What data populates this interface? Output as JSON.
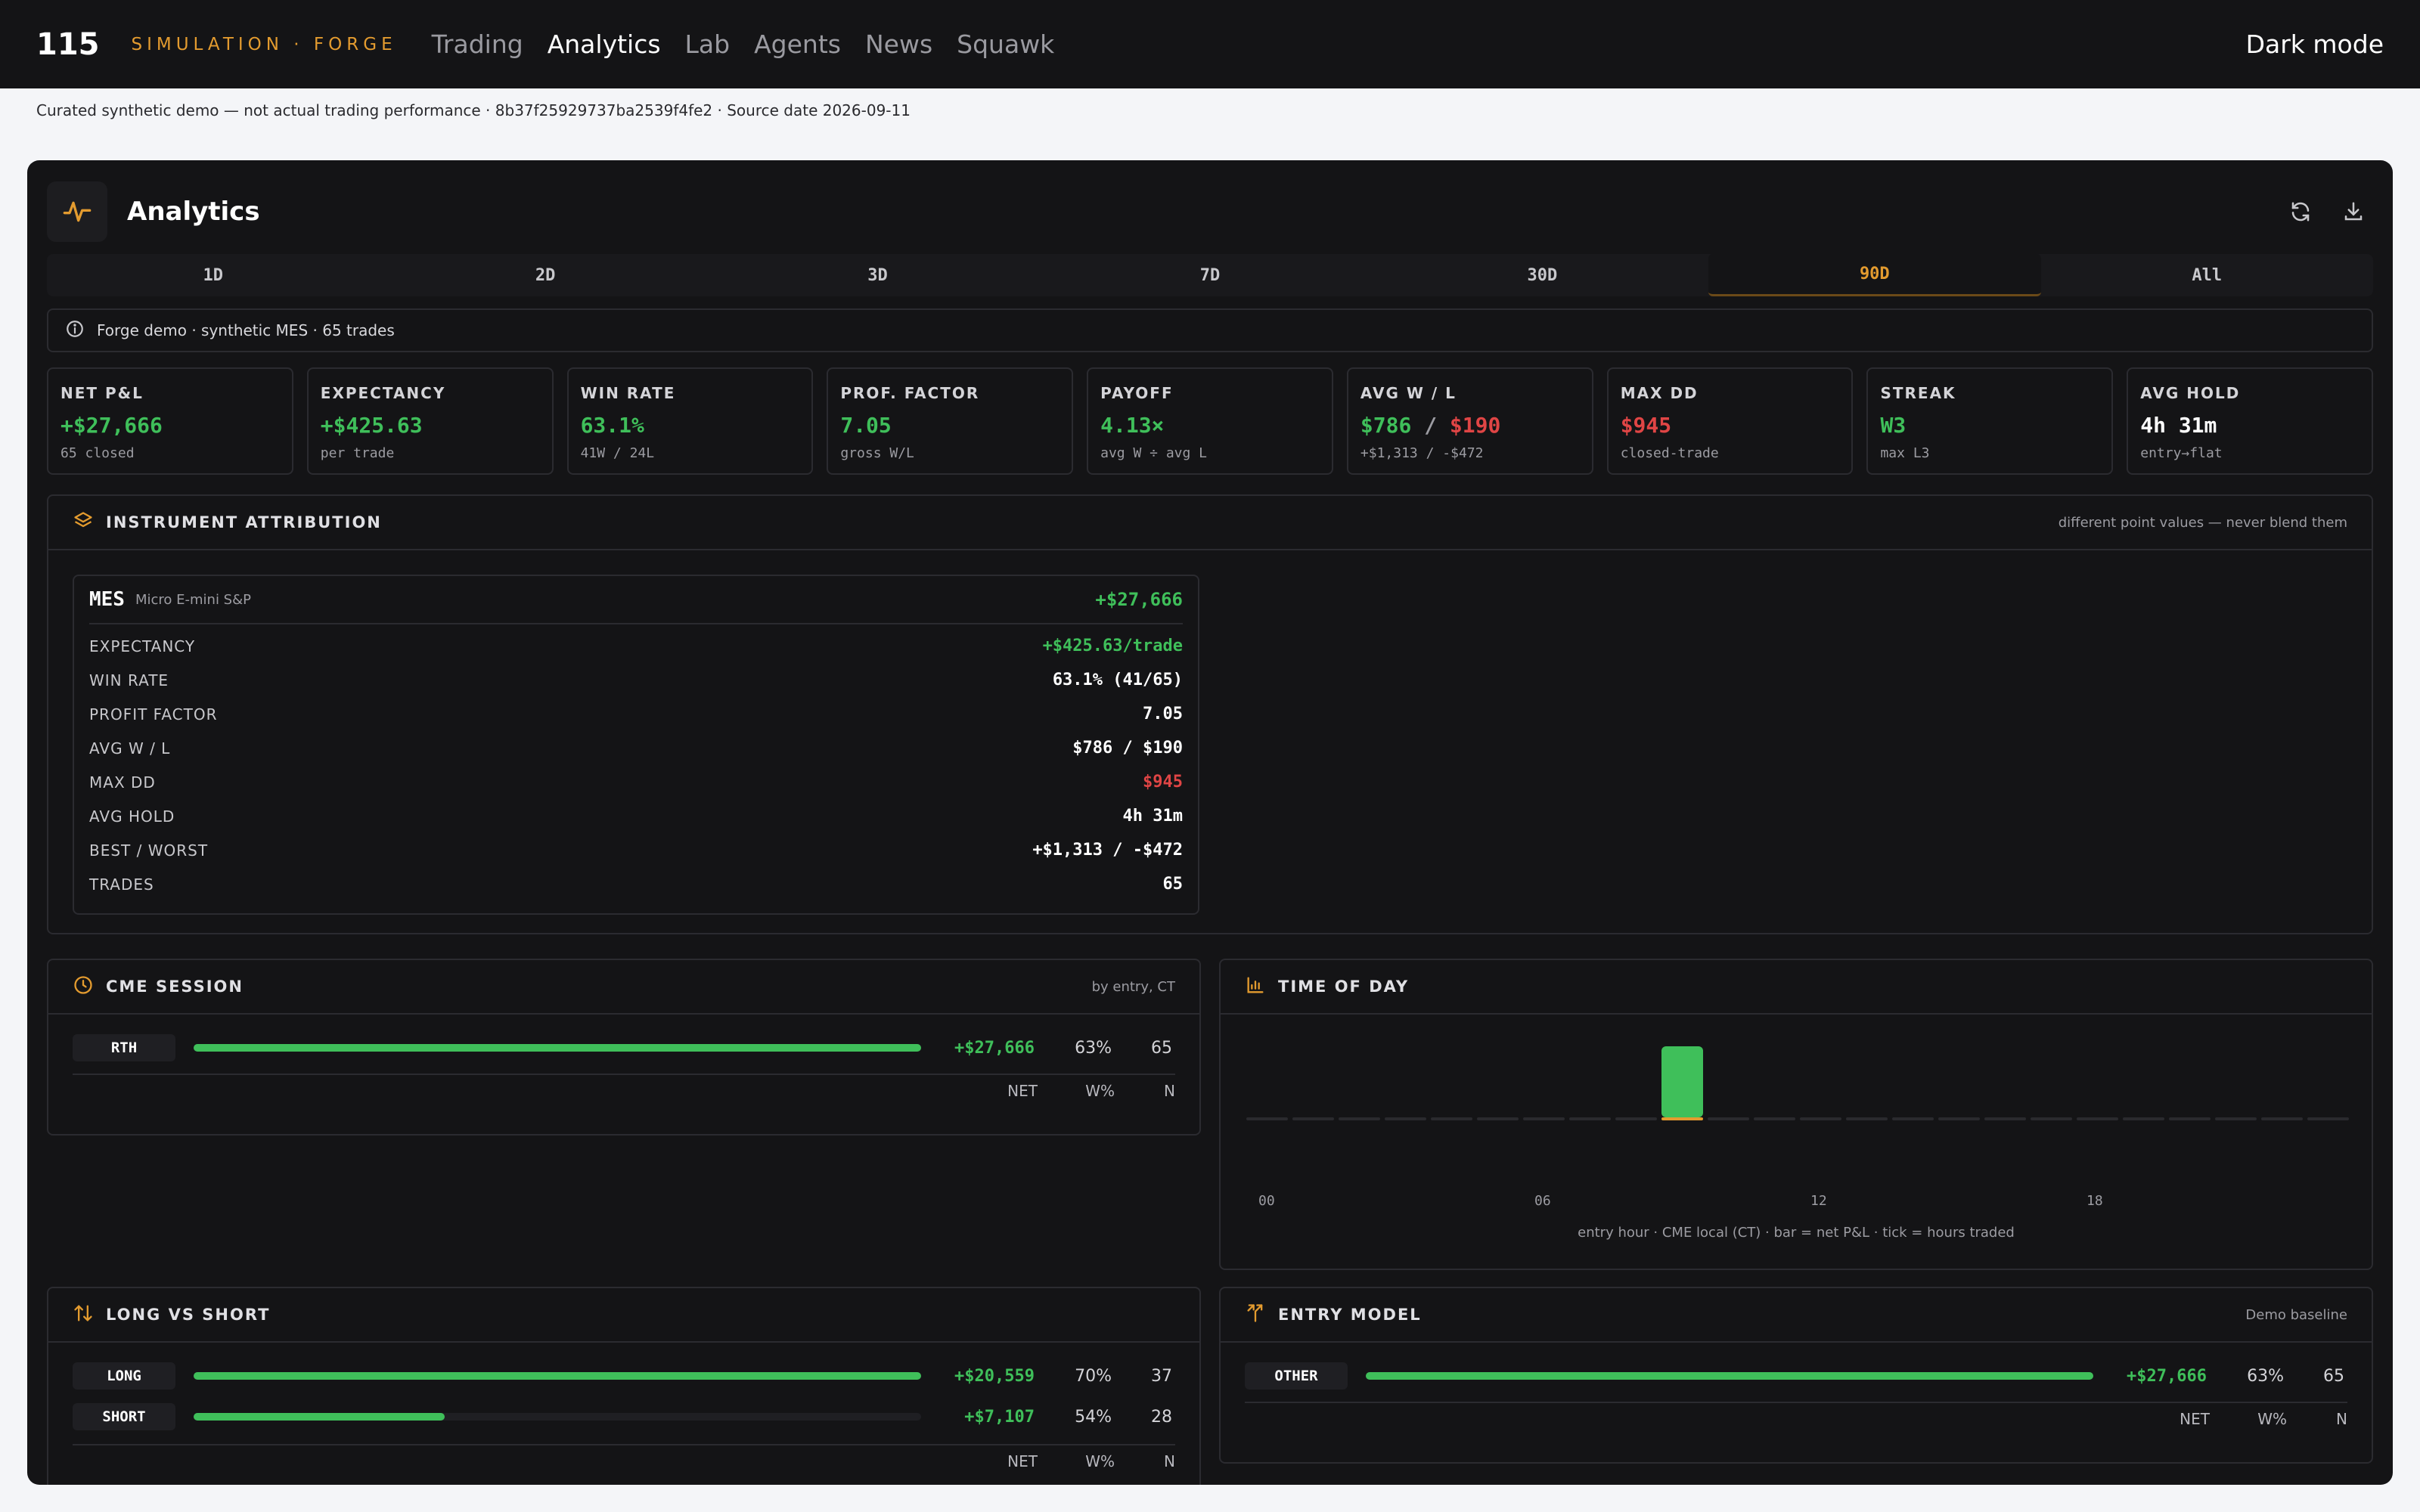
{
  "nav": {
    "logo": "115",
    "brand": "SIMULATION · FORGE",
    "links": [
      "Trading",
      "Analytics",
      "Lab",
      "Agents",
      "News",
      "Squawk"
    ],
    "active": "Analytics",
    "darkmode": "Dark mode"
  },
  "disclaimer": "Curated synthetic demo — not actual trading performance · 8b37f25929737ba2539f4fe2 · Source date 2026-09-11",
  "panel": {
    "title": "Analytics",
    "icons": {
      "header": "pulse-icon",
      "refresh": "refresh-icon",
      "download": "download-icon"
    },
    "tabs": [
      "1D",
      "2D",
      "3D",
      "7D",
      "30D",
      "90D",
      "All"
    ],
    "active_tab": "90D",
    "info": "Forge demo · synthetic MES · 65 trades"
  },
  "stats": [
    {
      "label": "NET P&L",
      "value": "+$27,666",
      "sub": "65 closed",
      "tone": "green"
    },
    {
      "label": "EXPECTANCY",
      "value": "+$425.63",
      "sub": "per trade",
      "tone": "green"
    },
    {
      "label": "WIN RATE",
      "value": "63.1%",
      "sub": "41W / 24L",
      "tone": "green"
    },
    {
      "label": "PROF. FACTOR",
      "value": "7.05",
      "sub": "gross W/L",
      "tone": "green"
    },
    {
      "label": "PAYOFF",
      "value": "4.13×",
      "sub": "avg W ÷ avg L",
      "tone": "green"
    },
    {
      "label": "AVG W / L",
      "value_w": "$786",
      "value_sep": "/",
      "value_l": "$190",
      "sub": "+$1,313 / -$472",
      "tone": "split"
    },
    {
      "label": "MAX DD",
      "value": "$945",
      "sub": "closed-trade",
      "tone": "red"
    },
    {
      "label": "STREAK",
      "value": "W3",
      "sub": "max L3",
      "tone": "green"
    },
    {
      "label": "AVG HOLD",
      "value": "4h 31m",
      "sub": "entry→flat",
      "tone": "white"
    }
  ],
  "attribution": {
    "title": "INSTRUMENT ATTRIBUTION",
    "note": "different point values — never blend them",
    "symbol": "MES",
    "desc": "Micro E-mini S&P",
    "total": "+$27,666",
    "rows": [
      {
        "k": "EXPECTANCY",
        "v": "+$425.63/trade",
        "tone": "green"
      },
      {
        "k": "WIN RATE",
        "v": "63.1% (41/65)",
        "tone": "white"
      },
      {
        "k": "PROFIT FACTOR",
        "v": "7.05",
        "tone": "white"
      },
      {
        "k": "AVG W / L",
        "v": "$786 / $190",
        "tone": "white"
      },
      {
        "k": "MAX DD",
        "v": "$945",
        "tone": "red"
      },
      {
        "k": "AVG HOLD",
        "v": "4h 31m",
        "tone": "white"
      },
      {
        "k": "BEST / WORST",
        "v": "+$1,313 / -$472",
        "tone": "white"
      },
      {
        "k": "TRADES",
        "v": "65",
        "tone": "white"
      }
    ]
  },
  "session": {
    "title": "CME SESSION",
    "note": "by entry, CT",
    "rows": [
      {
        "label": "RTH",
        "net": "+$27,666",
        "wp": "63%",
        "n": "65",
        "fill": 1.0
      }
    ],
    "foot": [
      "NET",
      "W%",
      "N"
    ]
  },
  "timeofday": {
    "title": "TIME OF DAY",
    "ticks": [
      "00",
      "06",
      "12",
      "18"
    ],
    "caption": "entry hour · CME local (CT) · bar = net P&L · tick = hours traded"
  },
  "chart_data": {
    "type": "bar",
    "categories": [
      "00",
      "01",
      "02",
      "03",
      "04",
      "05",
      "06",
      "07",
      "08",
      "09",
      "10",
      "11",
      "12",
      "13",
      "14",
      "15",
      "16",
      "17",
      "18",
      "19",
      "20",
      "21",
      "22",
      "23"
    ],
    "values": [
      0,
      0,
      0,
      0,
      0,
      0,
      0,
      0,
      0,
      27666,
      0,
      0,
      0,
      0,
      0,
      0,
      0,
      0,
      0,
      0,
      0,
      0,
      0,
      0
    ],
    "title": "TIME OF DAY",
    "xlabel": "",
    "ylabel": ""
  },
  "longshort": {
    "title": "LONG VS SHORT",
    "rows": [
      {
        "label": "LONG",
        "net": "+$20,559",
        "wp": "70%",
        "n": "37",
        "fill": 1.0
      },
      {
        "label": "SHORT",
        "net": "+$7,107",
        "wp": "54%",
        "n": "28",
        "fill": 0.345
      }
    ],
    "foot": [
      "NET",
      "W%",
      "N"
    ]
  },
  "entrymodel": {
    "title": "ENTRY MODEL",
    "note": "Demo baseline",
    "rows": [
      {
        "label": "OTHER",
        "net": "+$27,666",
        "wp": "63%",
        "n": "65",
        "fill": 1.0
      }
    ],
    "foot": [
      "NET",
      "W%",
      "N"
    ]
  },
  "colors": {
    "accent": "#e39b2f",
    "positive": "#3fbf5a",
    "negative": "#e04545",
    "panel": "#141416"
  }
}
